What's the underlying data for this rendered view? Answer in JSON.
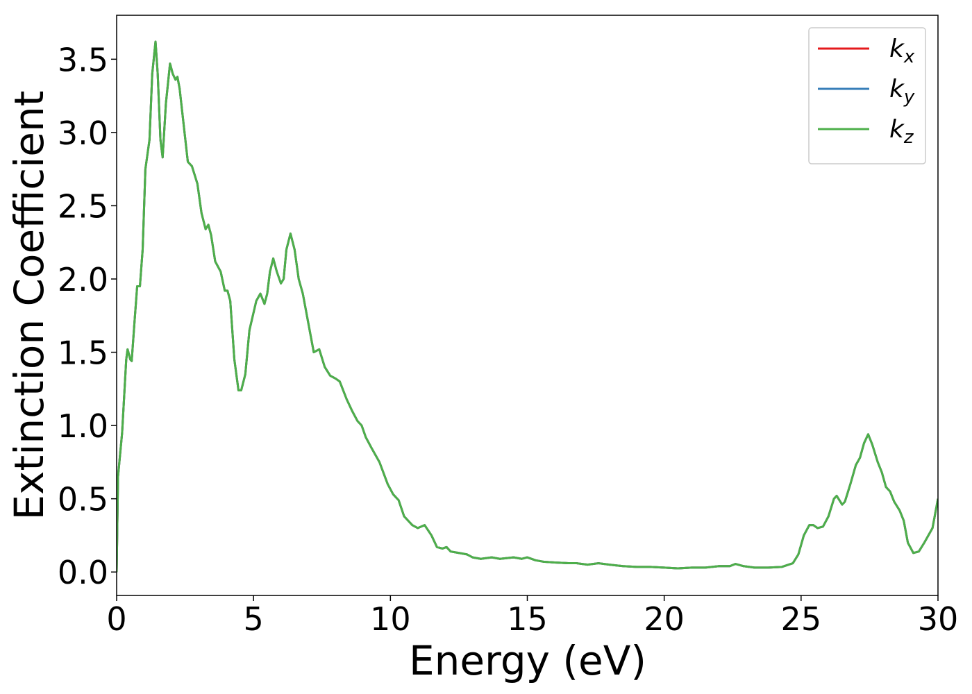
{
  "chart_data": {
    "type": "line",
    "xlabel": "Energy (eV)",
    "ylabel": "Extinction Coefficient",
    "xlim": [
      0,
      30
    ],
    "ylim": [
      -0.16,
      3.8
    ],
    "xticks": [
      0,
      5,
      10,
      15,
      20,
      25,
      30
    ],
    "yticks": [
      {
        "value": 0,
        "label": "0.0"
      },
      0.5,
      {
        "value": 1,
        "label": "1.0"
      },
      1.5,
      {
        "value": 2,
        "label": "2.0"
      },
      2.5,
      {
        "value": 3,
        "label": "3.0"
      },
      3.5
    ],
    "legend": "upper right",
    "x": [
      0,
      0.05,
      0.2,
      0.35,
      0.4,
      0.5,
      0.55,
      0.65,
      0.75,
      0.85,
      0.95,
      1.05,
      1.2,
      1.3,
      1.42,
      1.5,
      1.6,
      1.68,
      1.8,
      1.95,
      2.05,
      2.15,
      2.22,
      2.3,
      2.45,
      2.6,
      2.75,
      2.95,
      3.1,
      3.25,
      3.35,
      3.45,
      3.6,
      3.8,
      3.95,
      4.05,
      4.15,
      4.3,
      4.45,
      4.55,
      4.7,
      4.85,
      5.1,
      5.25,
      5.4,
      5.5,
      5.6,
      5.72,
      5.85,
      6.0,
      6.1,
      6.2,
      6.35,
      6.5,
      6.65,
      6.8,
      7.0,
      7.2,
      7.4,
      7.6,
      7.8,
      8.0,
      8.15,
      8.4,
      8.6,
      8.8,
      8.95,
      9.1,
      9.3,
      9.6,
      9.9,
      10.1,
      10.3,
      10.5,
      10.8,
      11.0,
      11.25,
      11.5,
      11.7,
      11.9,
      12.05,
      12.2,
      12.5,
      12.8,
      13.0,
      13.3,
      13.7,
      14.0,
      14.5,
      14.8,
      15.0,
      15.3,
      15.6,
      16.0,
      16.5,
      16.8,
      17.2,
      17.6,
      18.0,
      18.5,
      19.0,
      19.5,
      20.0,
      20.5,
      21.0,
      21.5,
      22.0,
      22.4,
      22.6,
      22.9,
      23.3,
      23.8,
      24.3,
      24.7,
      24.9,
      25.1,
      25.3,
      25.45,
      25.6,
      25.8,
      26.0,
      26.2,
      26.3,
      26.5,
      26.6,
      26.8,
      27.0,
      27.15,
      27.3,
      27.45,
      27.6,
      27.8,
      27.95,
      28.1,
      28.25,
      28.4,
      28.6,
      28.75,
      28.9,
      29.1,
      29.3,
      29.5,
      29.8,
      30.0
    ],
    "series": [
      {
        "name": "kx",
        "color": "#e41a1c",
        "values": [
          0,
          0.65,
          0.95,
          1.45,
          1.52,
          1.45,
          1.44,
          1.7,
          1.95,
          1.95,
          2.2,
          2.75,
          2.95,
          3.4,
          3.62,
          3.4,
          2.95,
          2.83,
          3.2,
          3.47,
          3.4,
          3.36,
          3.38,
          3.3,
          3.05,
          2.8,
          2.77,
          2.65,
          2.45,
          2.34,
          2.37,
          2.3,
          2.12,
          2.05,
          1.92,
          1.92,
          1.85,
          1.45,
          1.24,
          1.24,
          1.35,
          1.65,
          1.85,
          1.9,
          1.83,
          1.9,
          2.05,
          2.14,
          2.05,
          1.97,
          2.0,
          2.2,
          2.31,
          2.2,
          2.0,
          1.9,
          1.7,
          1.5,
          1.52,
          1.4,
          1.34,
          1.32,
          1.3,
          1.18,
          1.1,
          1.03,
          1.0,
          0.92,
          0.85,
          0.75,
          0.6,
          0.53,
          0.49,
          0.38,
          0.32,
          0.3,
          0.32,
          0.25,
          0.17,
          0.16,
          0.17,
          0.14,
          0.13,
          0.12,
          0.1,
          0.09,
          0.1,
          0.09,
          0.1,
          0.09,
          0.1,
          0.08,
          0.07,
          0.065,
          0.06,
          0.06,
          0.05,
          0.06,
          0.05,
          0.04,
          0.035,
          0.035,
          0.03,
          0.025,
          0.03,
          0.03,
          0.04,
          0.04,
          0.055,
          0.04,
          0.03,
          0.03,
          0.035,
          0.06,
          0.12,
          0.25,
          0.32,
          0.32,
          0.3,
          0.31,
          0.38,
          0.5,
          0.52,
          0.46,
          0.48,
          0.6,
          0.73,
          0.78,
          0.88,
          0.94,
          0.87,
          0.75,
          0.68,
          0.58,
          0.55,
          0.48,
          0.42,
          0.35,
          0.2,
          0.13,
          0.14,
          0.2,
          0.3,
          0.5
        ]
      },
      {
        "name": "ky",
        "color": "#377eb8",
        "values": [
          0,
          0.65,
          0.95,
          1.45,
          1.52,
          1.45,
          1.44,
          1.7,
          1.95,
          1.95,
          2.2,
          2.75,
          2.95,
          3.4,
          3.62,
          3.4,
          2.95,
          2.83,
          3.2,
          3.47,
          3.4,
          3.36,
          3.38,
          3.3,
          3.05,
          2.8,
          2.77,
          2.65,
          2.45,
          2.34,
          2.37,
          2.3,
          2.12,
          2.05,
          1.92,
          1.92,
          1.85,
          1.45,
          1.24,
          1.24,
          1.35,
          1.65,
          1.85,
          1.9,
          1.83,
          1.9,
          2.05,
          2.14,
          2.05,
          1.97,
          2.0,
          2.2,
          2.31,
          2.2,
          2.0,
          1.9,
          1.7,
          1.5,
          1.52,
          1.4,
          1.34,
          1.32,
          1.3,
          1.18,
          1.1,
          1.03,
          1.0,
          0.92,
          0.85,
          0.75,
          0.6,
          0.53,
          0.49,
          0.38,
          0.32,
          0.3,
          0.32,
          0.25,
          0.17,
          0.16,
          0.17,
          0.14,
          0.13,
          0.12,
          0.1,
          0.09,
          0.1,
          0.09,
          0.1,
          0.09,
          0.1,
          0.08,
          0.07,
          0.065,
          0.06,
          0.06,
          0.05,
          0.06,
          0.05,
          0.04,
          0.035,
          0.035,
          0.03,
          0.025,
          0.03,
          0.03,
          0.04,
          0.04,
          0.055,
          0.04,
          0.03,
          0.03,
          0.035,
          0.06,
          0.12,
          0.25,
          0.32,
          0.32,
          0.3,
          0.31,
          0.38,
          0.5,
          0.52,
          0.46,
          0.48,
          0.6,
          0.73,
          0.78,
          0.88,
          0.94,
          0.87,
          0.75,
          0.68,
          0.58,
          0.55,
          0.48,
          0.42,
          0.35,
          0.2,
          0.13,
          0.14,
          0.2,
          0.3,
          0.5
        ]
      },
      {
        "name": "kz",
        "color": "#4daf4a",
        "values": [
          0,
          0.65,
          0.95,
          1.45,
          1.52,
          1.45,
          1.44,
          1.7,
          1.95,
          1.95,
          2.2,
          2.75,
          2.95,
          3.4,
          3.62,
          3.4,
          2.95,
          2.83,
          3.2,
          3.47,
          3.4,
          3.36,
          3.38,
          3.3,
          3.05,
          2.8,
          2.77,
          2.65,
          2.45,
          2.34,
          2.37,
          2.3,
          2.12,
          2.05,
          1.92,
          1.92,
          1.85,
          1.45,
          1.24,
          1.24,
          1.35,
          1.65,
          1.85,
          1.9,
          1.83,
          1.9,
          2.05,
          2.14,
          2.05,
          1.97,
          2.0,
          2.2,
          2.31,
          2.2,
          2.0,
          1.9,
          1.7,
          1.5,
          1.52,
          1.4,
          1.34,
          1.32,
          1.3,
          1.18,
          1.1,
          1.03,
          1.0,
          0.92,
          0.85,
          0.75,
          0.6,
          0.53,
          0.49,
          0.38,
          0.32,
          0.3,
          0.32,
          0.25,
          0.17,
          0.16,
          0.17,
          0.14,
          0.13,
          0.12,
          0.1,
          0.09,
          0.1,
          0.09,
          0.1,
          0.09,
          0.1,
          0.08,
          0.07,
          0.065,
          0.06,
          0.06,
          0.05,
          0.06,
          0.05,
          0.04,
          0.035,
          0.035,
          0.03,
          0.025,
          0.03,
          0.03,
          0.04,
          0.04,
          0.055,
          0.04,
          0.03,
          0.03,
          0.035,
          0.06,
          0.12,
          0.25,
          0.32,
          0.32,
          0.3,
          0.31,
          0.38,
          0.5,
          0.52,
          0.46,
          0.48,
          0.6,
          0.73,
          0.78,
          0.88,
          0.94,
          0.87,
          0.75,
          0.68,
          0.58,
          0.55,
          0.48,
          0.42,
          0.35,
          0.2,
          0.13,
          0.14,
          0.2,
          0.3,
          0.5
        ]
      }
    ]
  }
}
